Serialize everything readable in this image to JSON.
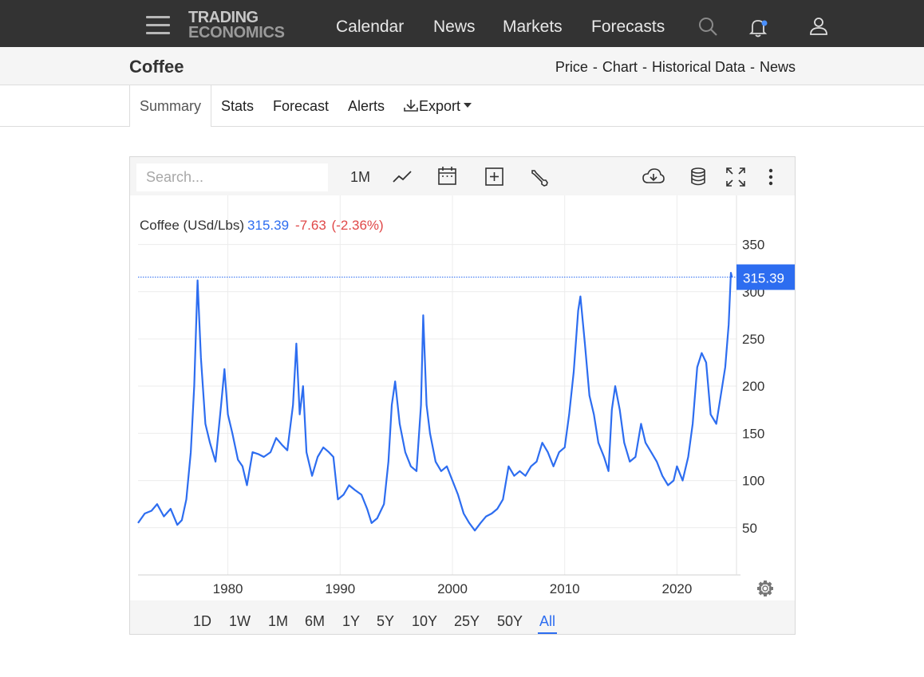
{
  "nav": {
    "logo_line1": "TRADING",
    "logo_line2": "ECONOMICS",
    "links": [
      "Calendar",
      "News",
      "Markets",
      "Forecasts"
    ],
    "icons": [
      "search-icon",
      "bell-icon",
      "user-icon"
    ],
    "notification_dot_color": "#4a90ff"
  },
  "header": {
    "title": "Coffee",
    "crumbs": [
      "Price",
      "Chart",
      "Historical Data",
      "News"
    ]
  },
  "tabs": [
    {
      "label": "Summary",
      "active": true
    },
    {
      "label": "Stats"
    },
    {
      "label": "Forecast"
    },
    {
      "label": "Alerts"
    },
    {
      "label": "Export"
    }
  ],
  "toolbar": {
    "search_placeholder": "Search...",
    "interval": "1M",
    "icons": [
      "line-chart-icon",
      "calendar-icon",
      "add-box-icon",
      "wrench-icon",
      "cloud-download-icon",
      "database-icon",
      "fullscreen-icon",
      "more-vertical-icon"
    ]
  },
  "legend": {
    "name": "Coffee (USd/Lbs)",
    "price": "315.39",
    "change": "-7.63",
    "change_pct": "(-2.36%)"
  },
  "range_buttons": [
    "1D",
    "1W",
    "1M",
    "6M",
    "1Y",
    "5Y",
    "10Y",
    "25Y",
    "50Y",
    "All"
  ],
  "active_range": "All",
  "chart_data": {
    "type": "line",
    "series": [
      {
        "color": "#2d6df0",
        "points": [
          [
            1972.0,
            55
          ],
          [
            1972.6,
            65
          ],
          [
            1973.2,
            68
          ],
          [
            1973.7,
            75
          ],
          [
            1974.3,
            62
          ],
          [
            1974.9,
            70
          ],
          [
            1975.5,
            53
          ],
          [
            1975.9,
            58
          ],
          [
            1976.3,
            80
          ],
          [
            1976.7,
            130
          ],
          [
            1977.0,
            200
          ],
          [
            1977.3,
            312
          ],
          [
            1977.6,
            230
          ],
          [
            1978.0,
            160
          ],
          [
            1978.4,
            140
          ],
          [
            1978.9,
            120
          ],
          [
            1979.4,
            180
          ],
          [
            1979.7,
            218
          ],
          [
            1980.0,
            170
          ],
          [
            1980.4,
            150
          ],
          [
            1980.9,
            122
          ],
          [
            1981.3,
            115
          ],
          [
            1981.7,
            95
          ],
          [
            1982.2,
            130
          ],
          [
            1982.7,
            128
          ],
          [
            1983.2,
            125
          ],
          [
            1983.8,
            130
          ],
          [
            1984.3,
            145
          ],
          [
            1984.8,
            138
          ],
          [
            1985.3,
            132
          ],
          [
            1985.8,
            180
          ],
          [
            1986.1,
            245
          ],
          [
            1986.4,
            170
          ],
          [
            1986.7,
            200
          ],
          [
            1987.0,
            130
          ],
          [
            1987.5,
            105
          ],
          [
            1988.0,
            125
          ],
          [
            1988.5,
            135
          ],
          [
            1989.0,
            130
          ],
          [
            1989.4,
            125
          ],
          [
            1989.8,
            80
          ],
          [
            1990.3,
            85
          ],
          [
            1990.8,
            95
          ],
          [
            1991.3,
            90
          ],
          [
            1991.9,
            85
          ],
          [
            1992.4,
            70
          ],
          [
            1992.8,
            55
          ],
          [
            1993.3,
            60
          ],
          [
            1993.9,
            75
          ],
          [
            1994.3,
            120
          ],
          [
            1994.6,
            180
          ],
          [
            1994.9,
            205
          ],
          [
            1995.3,
            160
          ],
          [
            1995.8,
            130
          ],
          [
            1996.3,
            115
          ],
          [
            1996.8,
            110
          ],
          [
            1997.2,
            180
          ],
          [
            1997.4,
            275
          ],
          [
            1997.7,
            180
          ],
          [
            1998.0,
            150
          ],
          [
            1998.5,
            120
          ],
          [
            1999.0,
            110
          ],
          [
            1999.5,
            115
          ],
          [
            2000.0,
            100
          ],
          [
            2000.5,
            85
          ],
          [
            2001.0,
            65
          ],
          [
            2001.5,
            55
          ],
          [
            2002.0,
            47
          ],
          [
            2002.5,
            55
          ],
          [
            2003.0,
            62
          ],
          [
            2003.5,
            65
          ],
          [
            2004.0,
            70
          ],
          [
            2004.5,
            80
          ],
          [
            2005.0,
            115
          ],
          [
            2005.5,
            105
          ],
          [
            2006.0,
            110
          ],
          [
            2006.5,
            105
          ],
          [
            2007.0,
            115
          ],
          [
            2007.5,
            120
          ],
          [
            2008.0,
            140
          ],
          [
            2008.5,
            130
          ],
          [
            2009.0,
            115
          ],
          [
            2009.5,
            130
          ],
          [
            2010.0,
            135
          ],
          [
            2010.4,
            170
          ],
          [
            2010.8,
            215
          ],
          [
            2011.2,
            280
          ],
          [
            2011.4,
            295
          ],
          [
            2011.8,
            245
          ],
          [
            2012.2,
            190
          ],
          [
            2012.6,
            170
          ],
          [
            2013.0,
            140
          ],
          [
            2013.5,
            125
          ],
          [
            2013.9,
            110
          ],
          [
            2014.2,
            175
          ],
          [
            2014.5,
            200
          ],
          [
            2014.9,
            175
          ],
          [
            2015.3,
            140
          ],
          [
            2015.8,
            120
          ],
          [
            2016.3,
            125
          ],
          [
            2016.8,
            160
          ],
          [
            2017.2,
            140
          ],
          [
            2017.7,
            130
          ],
          [
            2018.2,
            120
          ],
          [
            2018.7,
            105
          ],
          [
            2019.2,
            95
          ],
          [
            2019.7,
            100
          ],
          [
            2020.0,
            115
          ],
          [
            2020.5,
            100
          ],
          [
            2021.0,
            125
          ],
          [
            2021.4,
            160
          ],
          [
            2021.8,
            220
          ],
          [
            2022.2,
            235
          ],
          [
            2022.6,
            225
          ],
          [
            2023.0,
            170
          ],
          [
            2023.5,
            160
          ],
          [
            2023.9,
            190
          ],
          [
            2024.3,
            220
          ],
          [
            2024.6,
            265
          ],
          [
            2024.8,
            320
          ],
          [
            2024.9,
            315
          ]
        ]
      }
    ],
    "x_ticks": [
      1980,
      1990,
      2000,
      2010,
      2020
    ],
    "y_ticks": [
      50,
      100,
      150,
      200,
      250,
      300,
      350
    ],
    "xlim": [
      1972.0,
      2025.3
    ],
    "ylim": [
      0,
      402
    ],
    "last_value": 315.39,
    "last_value_label": "315.39",
    "grid": true
  }
}
